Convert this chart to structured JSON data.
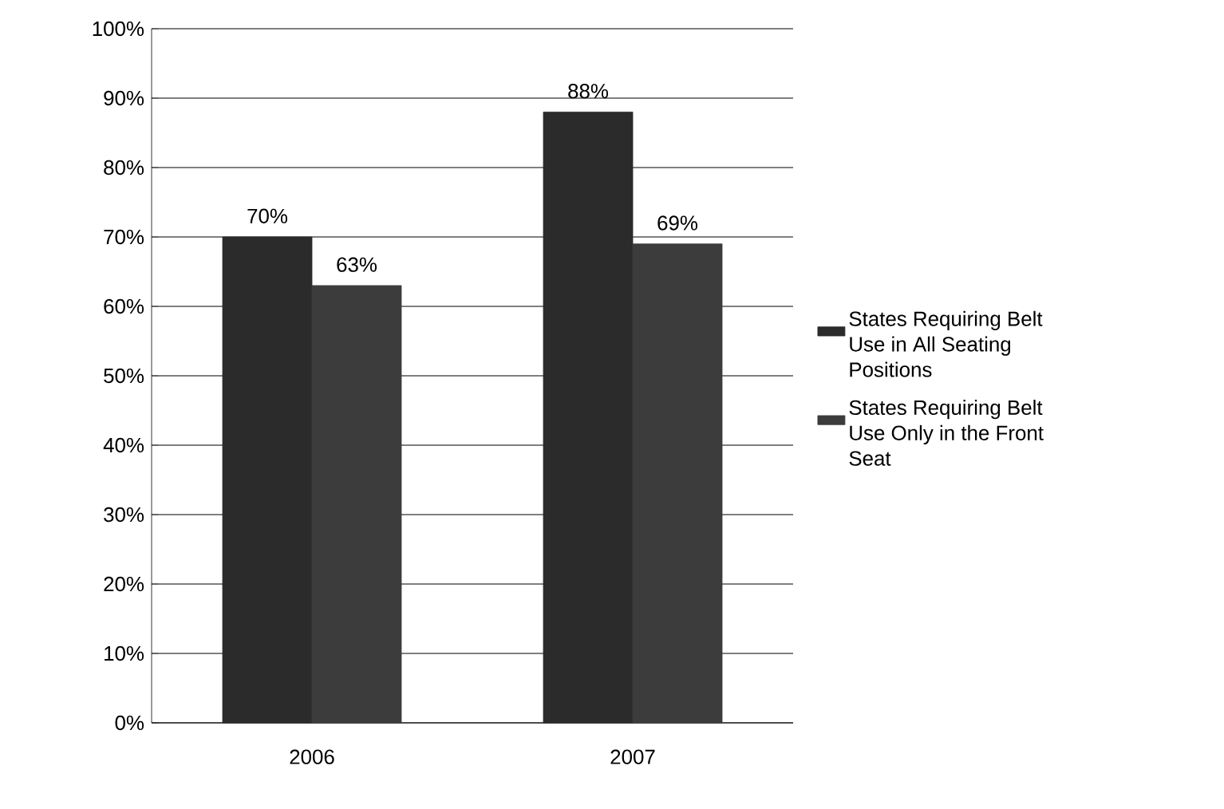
{
  "chart_data": {
    "type": "bar",
    "categories": [
      "2006",
      "2007"
    ],
    "series": [
      {
        "name": "States Requiring Belt Use in All Seating Positions",
        "color": "#2b2b2b",
        "values": [
          70,
          88
        ],
        "value_labels": [
          "70%",
          "88%"
        ]
      },
      {
        "name": "States Requiring Belt Use Only in the Front Seat",
        "color": "#3c3c3c",
        "values": [
          63,
          69
        ],
        "value_labels": [
          "63%",
          "69%"
        ]
      }
    ],
    "ylim": [
      0,
      100
    ],
    "yticks": [
      {
        "value": 0,
        "label": "0%"
      },
      {
        "value": 10,
        "label": "10%"
      },
      {
        "value": 20,
        "label": "20%"
      },
      {
        "value": 30,
        "label": "30%"
      },
      {
        "value": 40,
        "label": "40%"
      },
      {
        "value": 50,
        "label": "50%"
      },
      {
        "value": 60,
        "label": "60%"
      },
      {
        "value": 70,
        "label": "70%"
      },
      {
        "value": 80,
        "label": "80%"
      },
      {
        "value": 90,
        "label": "90%"
      },
      {
        "value": 100,
        "label": "100%"
      }
    ],
    "grid": "y",
    "legend": "right"
  }
}
